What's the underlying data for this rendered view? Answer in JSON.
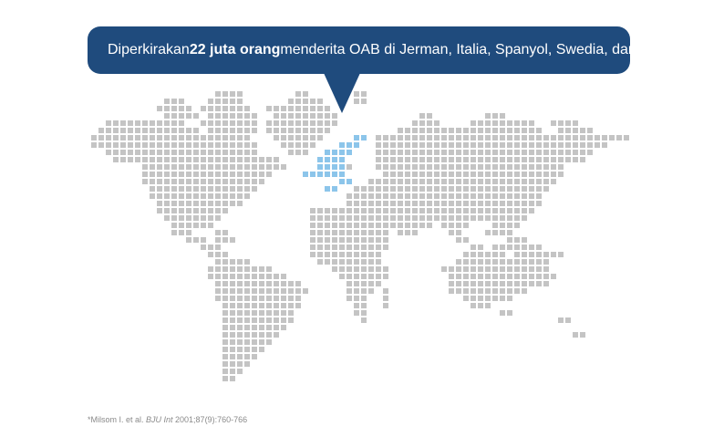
{
  "callout": {
    "text_before": "Diperkirakan ",
    "text_bold": "22 juta orang",
    "text_after": " menderita OAB di Jerman, Italia, Spanyol, Swedia, dan Inggris",
    "asterisk": "*"
  },
  "footnote": {
    "prefix": "*Milsom I. et al. ",
    "journal": "BJU Int",
    "suffix": " 2001;87(9):760-766"
  },
  "colors": {
    "callout_bg": "#1f4b7d",
    "dot_default": "#c4c4c4",
    "dot_highlight": "#8cc5ea"
  }
}
